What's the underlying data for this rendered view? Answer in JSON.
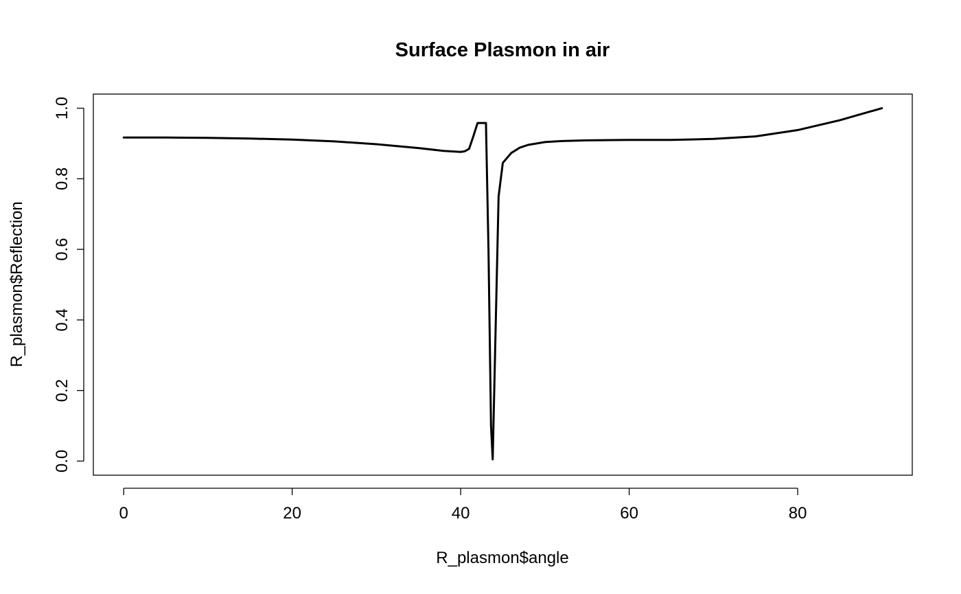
{
  "chart_data": {
    "type": "line",
    "title": "Surface Plasmon in air",
    "xlabel": "R_plasmon$angle",
    "ylabel": "R_plasmon$Reflection",
    "xlim": [
      -3.6,
      93.6
    ],
    "ylim": [
      -0.04,
      1.04
    ],
    "x_ticks": [
      0,
      20,
      40,
      60,
      80
    ],
    "x_tick_labels": [
      "0",
      "20",
      "40",
      "60",
      "80"
    ],
    "y_ticks": [
      0.0,
      0.2,
      0.4,
      0.6,
      0.8,
      1.0
    ],
    "y_tick_labels": [
      "0.0",
      "0.2",
      "0.4",
      "0.6",
      "0.8",
      "1.0"
    ],
    "grid": false,
    "series": [
      {
        "color": "#000000",
        "x": [
          0,
          5,
          10,
          15,
          20,
          25,
          30,
          35,
          38,
          40,
          40.5,
          41,
          41.5,
          42,
          42.5,
          43,
          43.3,
          43.6,
          43.8,
          44.5,
          45,
          46,
          47,
          48,
          50,
          52,
          55,
          60,
          65,
          70,
          75,
          80,
          85,
          90
        ],
        "y": [
          0.917,
          0.917,
          0.916,
          0.914,
          0.911,
          0.906,
          0.898,
          0.887,
          0.879,
          0.876,
          0.878,
          0.885,
          0.92,
          0.958,
          0.958,
          0.958,
          0.6,
          0.1,
          0.005,
          0.75,
          0.845,
          0.873,
          0.888,
          0.896,
          0.904,
          0.907,
          0.909,
          0.91,
          0.91,
          0.913,
          0.92,
          0.938,
          0.966,
          1.0
        ]
      }
    ]
  }
}
